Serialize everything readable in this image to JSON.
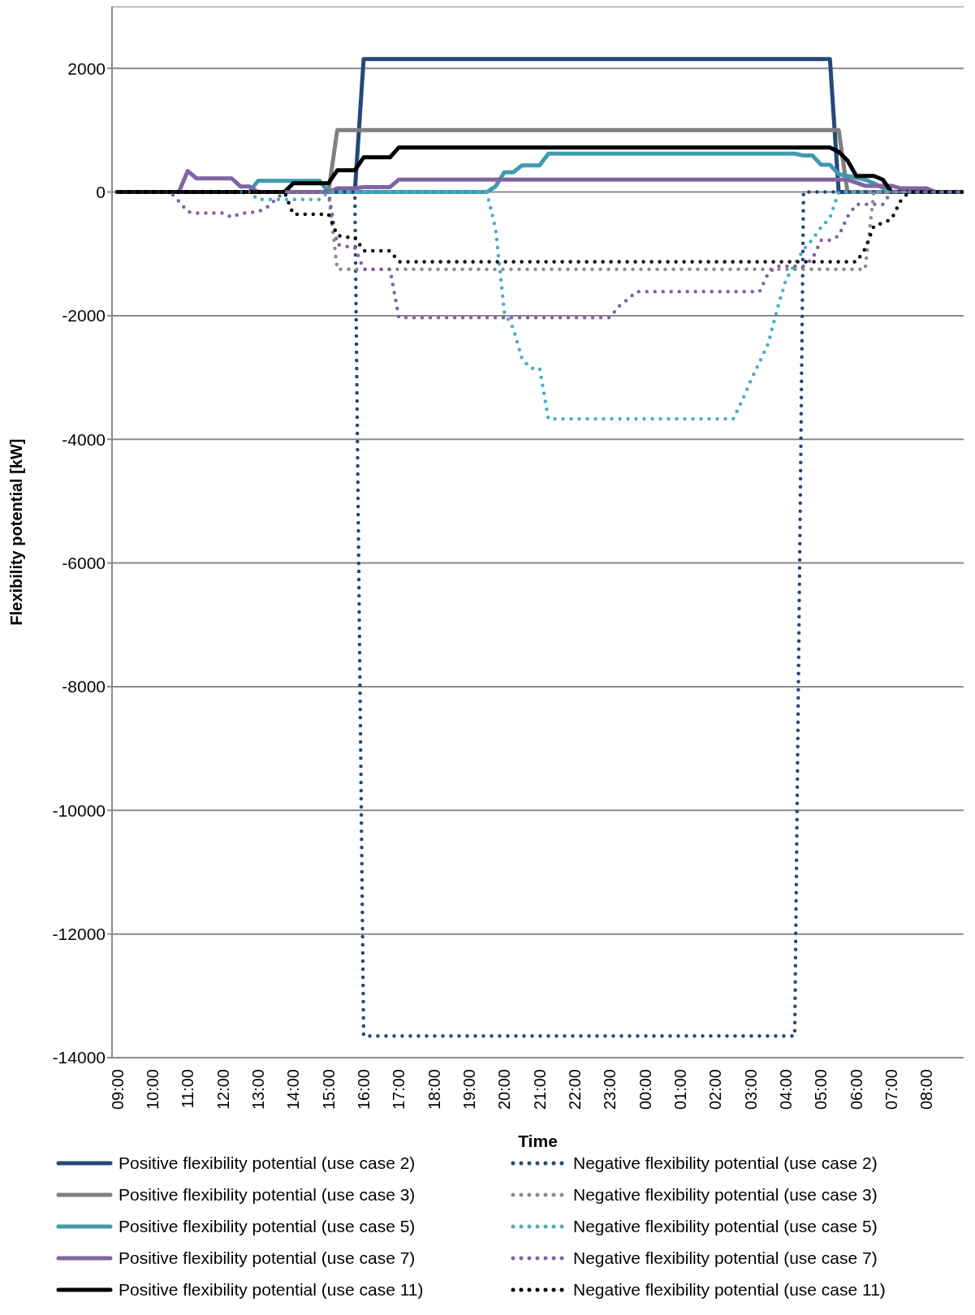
{
  "chart_data": {
    "type": "line",
    "xlabel": "Time",
    "ylabel": "Flexibility potential [kW]",
    "categories": [
      "09:00",
      null,
      null,
      null,
      "10:00",
      null,
      null,
      null,
      "11:00",
      null,
      null,
      null,
      "12:00",
      null,
      null,
      null,
      "13:00",
      null,
      null,
      null,
      "14:00",
      null,
      null,
      null,
      "15:00",
      null,
      null,
      null,
      "16:00",
      null,
      null,
      null,
      "17:00",
      null,
      null,
      null,
      "18:00",
      null,
      null,
      null,
      "19:00",
      null,
      null,
      null,
      "20:00",
      null,
      null,
      null,
      "21:00",
      null,
      null,
      null,
      "22:00",
      null,
      null,
      null,
      "23:00",
      null,
      null,
      null,
      "00:00",
      null,
      null,
      null,
      "01:00",
      null,
      null,
      null,
      "02:00",
      null,
      null,
      null,
      "03:00",
      null,
      null,
      null,
      "04:00",
      null,
      null,
      null,
      "05:00",
      null,
      null,
      null,
      "06:00",
      null,
      null,
      null,
      "07:00",
      null,
      null,
      null,
      "08:00",
      null,
      null,
      null,
      null
    ],
    "ylim": [
      -14000,
      3000
    ],
    "yticks": [
      -14000,
      -12000,
      -10000,
      -8000,
      -6000,
      -4000,
      -2000,
      0,
      2000
    ],
    "grid": "y",
    "legend": "bottom",
    "series": [
      {
        "name": "Positive flexibility potential (use case 2)",
        "color": "#24497a",
        "line_style": "solid",
        "values": [
          0,
          0,
          0,
          0,
          0,
          0,
          0,
          0,
          0,
          0,
          0,
          0,
          0,
          0,
          0,
          0,
          0,
          0,
          0,
          0,
          0,
          0,
          0,
          0,
          0,
          0,
          0,
          0,
          2150,
          2150,
          2150,
          2150,
          2150,
          2150,
          2150,
          2150,
          2150,
          2150,
          2150,
          2150,
          2150,
          2150,
          2150,
          2150,
          2150,
          2150,
          2150,
          2150,
          2150,
          2150,
          2150,
          2150,
          2150,
          2150,
          2150,
          2150,
          2150,
          2150,
          2150,
          2150,
          2150,
          2150,
          2150,
          2150,
          2150,
          2150,
          2150,
          2150,
          2150,
          2150,
          2150,
          2150,
          2150,
          2150,
          2150,
          2150,
          2150,
          2150,
          2150,
          2150,
          2150,
          2150,
          0,
          0,
          0,
          0,
          0,
          0,
          0,
          0,
          0,
          0,
          0,
          0,
          0,
          0,
          0
        ]
      },
      {
        "name": "Positive flexibility potential (use case 3)",
        "color": "#808080",
        "line_style": "solid",
        "values": [
          0,
          0,
          0,
          0,
          0,
          0,
          0,
          0,
          0,
          0,
          0,
          0,
          0,
          0,
          0,
          0,
          0,
          0,
          0,
          0,
          0,
          0,
          0,
          0,
          0,
          1000,
          1000,
          1000,
          1000,
          1000,
          1000,
          1000,
          1000,
          1000,
          1000,
          1000,
          1000,
          1000,
          1000,
          1000,
          1000,
          1000,
          1000,
          1000,
          1000,
          1000,
          1000,
          1000,
          1000,
          1000,
          1000,
          1000,
          1000,
          1000,
          1000,
          1000,
          1000,
          1000,
          1000,
          1000,
          1000,
          1000,
          1000,
          1000,
          1000,
          1000,
          1000,
          1000,
          1000,
          1000,
          1000,
          1000,
          1000,
          1000,
          1000,
          1000,
          1000,
          1000,
          1000,
          1000,
          1000,
          1000,
          1000,
          0,
          0,
          0,
          0,
          0,
          0,
          0,
          0,
          0,
          0,
          0,
          0,
          0,
          0
        ]
      },
      {
        "name": "Positive flexibility potential (use case 5)",
        "color": "#3d9bb0",
        "line_style": "solid",
        "values": [
          null,
          null,
          null,
          null,
          null,
          null,
          null,
          null,
          null,
          null,
          null,
          null,
          null,
          null,
          0,
          0,
          180,
          180,
          180,
          180,
          180,
          180,
          180,
          180,
          0,
          0,
          0,
          0,
          0,
          0,
          0,
          0,
          0,
          0,
          0,
          0,
          0,
          0,
          0,
          0,
          0,
          0,
          0,
          90,
          320,
          320,
          430,
          430,
          430,
          620,
          620,
          620,
          620,
          620,
          620,
          620,
          620,
          620,
          620,
          620,
          620,
          620,
          620,
          620,
          620,
          620,
          620,
          620,
          620,
          620,
          620,
          620,
          620,
          620,
          620,
          620,
          620,
          620,
          590,
          590,
          440,
          440,
          290,
          260,
          230,
          200,
          140,
          70,
          0,
          0,
          0,
          0,
          0,
          0,
          0,
          0,
          0
        ]
      },
      {
        "name": "Positive flexibility potential (use case 7)",
        "color": "#8064a2",
        "line_style": "solid",
        "values": [
          0,
          0,
          0,
          0,
          0,
          0,
          0,
          0,
          340,
          220,
          220,
          220,
          220,
          220,
          90,
          90,
          0,
          0,
          0,
          0,
          0,
          0,
          0,
          0,
          0,
          60,
          60,
          60,
          80,
          80,
          80,
          80,
          200,
          200,
          200,
          200,
          200,
          200,
          200,
          200,
          200,
          200,
          200,
          200,
          200,
          200,
          200,
          200,
          200,
          200,
          200,
          200,
          200,
          200,
          200,
          200,
          200,
          200,
          200,
          200,
          200,
          200,
          200,
          200,
          200,
          200,
          200,
          200,
          200,
          200,
          200,
          200,
          200,
          200,
          200,
          200,
          200,
          200,
          200,
          200,
          200,
          200,
          200,
          200,
          150,
          100,
          100,
          100,
          100,
          60,
          60,
          60,
          60,
          0,
          0,
          0,
          0
        ]
      },
      {
        "name": "Positive flexibility potential (use case 11)",
        "color": "#000000",
        "line_style": "solid",
        "values": [
          0,
          0,
          0,
          0,
          0,
          0,
          0,
          0,
          0,
          0,
          0,
          0,
          0,
          0,
          0,
          0,
          0,
          0,
          0,
          0,
          140,
          140,
          140,
          140,
          140,
          350,
          350,
          350,
          560,
          560,
          560,
          560,
          720,
          720,
          720,
          720,
          720,
          720,
          720,
          720,
          720,
          720,
          720,
          720,
          720,
          720,
          720,
          720,
          720,
          720,
          720,
          720,
          720,
          720,
          720,
          720,
          720,
          720,
          720,
          720,
          720,
          720,
          720,
          720,
          720,
          720,
          720,
          720,
          720,
          720,
          720,
          720,
          720,
          720,
          720,
          720,
          720,
          720,
          720,
          720,
          720,
          720,
          650,
          510,
          260,
          260,
          260,
          200,
          0,
          0,
          0,
          0,
          0,
          0,
          0,
          0,
          0
        ]
      },
      {
        "name": "Negative flexibility potential (use case 2)",
        "color": "#24497a",
        "line_style": "dotted",
        "values": [
          0,
          0,
          0,
          0,
          0,
          0,
          0,
          0,
          0,
          0,
          0,
          0,
          0,
          0,
          0,
          0,
          0,
          0,
          0,
          0,
          0,
          0,
          0,
          0,
          0,
          0,
          0,
          0,
          -13650,
          -13650,
          -13650,
          -13650,
          -13650,
          -13650,
          -13650,
          -13650,
          -13650,
          -13650,
          -13650,
          -13650,
          -13650,
          -13650,
          -13650,
          -13650,
          -13650,
          -13650,
          -13650,
          -13650,
          -13650,
          -13650,
          -13650,
          -13650,
          -13650,
          -13650,
          -13650,
          -13650,
          -13650,
          -13650,
          -13650,
          -13650,
          -13650,
          -13650,
          -13650,
          -13650,
          -13650,
          -13650,
          -13650,
          -13650,
          -13650,
          -13650,
          -13650,
          -13650,
          -13650,
          -13650,
          -13650,
          -13650,
          -13650,
          -13650,
          0,
          0,
          0,
          0,
          0,
          0,
          0,
          0,
          0,
          0,
          0,
          0,
          0,
          0,
          0,
          0,
          0,
          0,
          0
        ]
      },
      {
        "name": "Negative flexibility potential (use case 3)",
        "color": "#8c8c8c",
        "line_style": "dotted",
        "values": [
          0,
          0,
          0,
          0,
          0,
          0,
          0,
          0,
          0,
          0,
          0,
          0,
          0,
          0,
          0,
          0,
          0,
          0,
          0,
          0,
          0,
          0,
          0,
          0,
          0,
          -1250,
          -1250,
          -1250,
          -1250,
          -1250,
          -1250,
          -1250,
          -1250,
          -1250,
          -1250,
          -1250,
          -1250,
          -1250,
          -1250,
          -1250,
          -1250,
          -1250,
          -1250,
          -1250,
          -1250,
          -1250,
          -1250,
          -1250,
          -1250,
          -1250,
          -1250,
          -1250,
          -1250,
          -1250,
          -1250,
          -1250,
          -1250,
          -1250,
          -1250,
          -1250,
          -1250,
          -1250,
          -1250,
          -1250,
          -1250,
          -1250,
          -1250,
          -1250,
          -1250,
          -1250,
          -1250,
          -1250,
          -1250,
          -1250,
          -1250,
          -1250,
          -1250,
          -1250,
          -1250,
          -1250,
          -1250,
          -1250,
          -1250,
          -1250,
          -1250,
          -1250,
          0,
          0,
          0,
          0,
          0,
          0,
          0,
          0,
          0,
          0,
          0
        ]
      },
      {
        "name": "Negative flexibility potential (use case 5)",
        "color": "#4bacc6",
        "line_style": "dotted",
        "values": [
          null,
          null,
          null,
          null,
          null,
          null,
          null,
          null,
          null,
          null,
          null,
          null,
          null,
          null,
          0,
          0,
          -120,
          -120,
          -120,
          -120,
          -120,
          -120,
          -120,
          -120,
          0,
          0,
          0,
          0,
          0,
          0,
          0,
          0,
          0,
          0,
          0,
          0,
          0,
          0,
          0,
          0,
          0,
          0,
          0,
          -600,
          -1950,
          -2200,
          -2700,
          -2850,
          -2850,
          -3670,
          -3670,
          -3670,
          -3670,
          -3670,
          -3670,
          -3670,
          -3670,
          -3670,
          -3670,
          -3670,
          -3670,
          -3670,
          -3670,
          -3670,
          -3670,
          -3670,
          -3670,
          -3670,
          -3670,
          -3670,
          -3670,
          -3380,
          -3050,
          -2750,
          -2450,
          -1900,
          -1420,
          -1170,
          -930,
          -770,
          -570,
          -420,
          0,
          0,
          0,
          0,
          0,
          0,
          0,
          0,
          0,
          0,
          0,
          0,
          0,
          0,
          0
        ]
      },
      {
        "name": "Negative flexibility potential (use case 7)",
        "color": "#8064a2",
        "line_style": "dotted",
        "values": [
          0,
          0,
          0,
          0,
          0,
          0,
          0,
          -150,
          -320,
          -340,
          -340,
          -340,
          -340,
          -410,
          -350,
          -330,
          -320,
          -250,
          -120,
          0,
          0,
          0,
          0,
          0,
          0,
          -850,
          -880,
          -900,
          -1250,
          -1250,
          -1250,
          -1250,
          -2030,
          -2030,
          -2030,
          -2030,
          -2030,
          -2030,
          -2030,
          -2030,
          -2030,
          -2030,
          -2030,
          -2030,
          -2030,
          -2030,
          -2030,
          -2030,
          -2030,
          -2030,
          -2030,
          -2030,
          -2030,
          -2030,
          -2030,
          -2030,
          -2030,
          -1850,
          -1740,
          -1610,
          -1610,
          -1610,
          -1610,
          -1610,
          -1610,
          -1610,
          -1610,
          -1610,
          -1610,
          -1610,
          -1610,
          -1610,
          -1610,
          -1610,
          -1310,
          -1200,
          -1200,
          -1200,
          -1200,
          -1080,
          -780,
          -780,
          -710,
          -400,
          -200,
          -200,
          -200,
          -200,
          0,
          0,
          0,
          0,
          0,
          0,
          0,
          0,
          0
        ]
      },
      {
        "name": "Negative flexibility potential (use case 11)",
        "color": "#000000",
        "line_style": "dotted",
        "values": [
          0,
          0,
          0,
          0,
          0,
          0,
          0,
          0,
          0,
          0,
          0,
          0,
          0,
          0,
          0,
          0,
          0,
          0,
          0,
          0,
          -360,
          -360,
          -360,
          -360,
          -360,
          -700,
          -730,
          -730,
          -950,
          -950,
          -950,
          -950,
          -1130,
          -1130,
          -1130,
          -1130,
          -1130,
          -1130,
          -1130,
          -1130,
          -1130,
          -1130,
          -1130,
          -1130,
          -1130,
          -1130,
          -1130,
          -1130,
          -1130,
          -1130,
          -1130,
          -1130,
          -1130,
          -1130,
          -1130,
          -1130,
          -1130,
          -1130,
          -1130,
          -1130,
          -1130,
          -1130,
          -1130,
          -1130,
          -1130,
          -1130,
          -1130,
          -1130,
          -1130,
          -1130,
          -1130,
          -1130,
          -1130,
          -1130,
          -1130,
          -1130,
          -1130,
          -1130,
          -1130,
          -1130,
          -1130,
          -1130,
          -1130,
          -1130,
          -1130,
          -920,
          -550,
          -500,
          -440,
          -150,
          0,
          0,
          0,
          0,
          0,
          0,
          0
        ]
      }
    ]
  }
}
